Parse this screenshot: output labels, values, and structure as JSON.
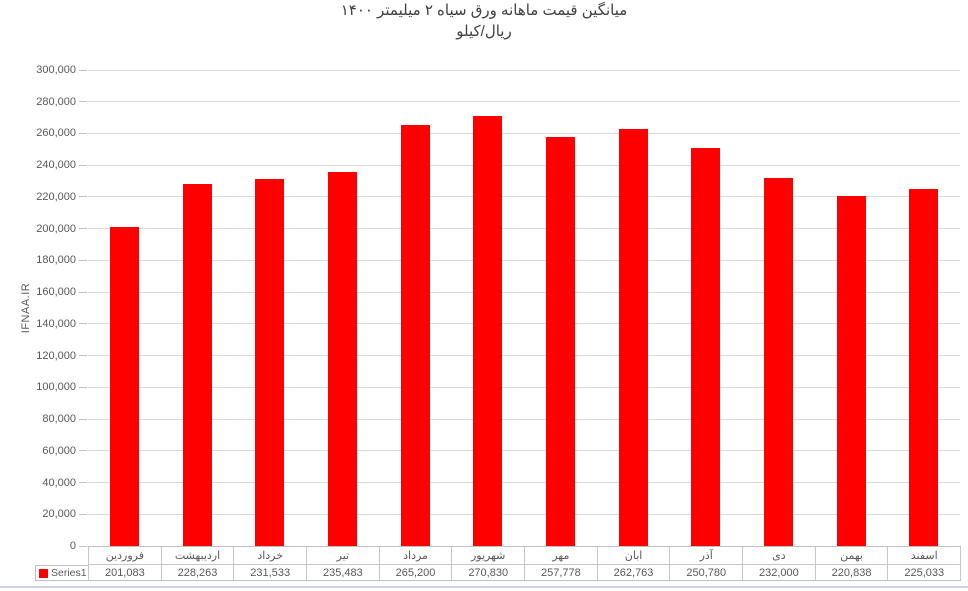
{
  "title": {
    "line1": "میانگین قیمت ماهانه ورق سیاه ۲ میلیمتر ۱۴۰۰",
    "line2": "ریال/کیلو"
  },
  "y_axis": {
    "title": "IFNAA.IR",
    "tick_labels": [
      "0",
      "20,000",
      "40,000",
      "60,000",
      "80,000",
      "100,000",
      "120,000",
      "140,000",
      "160,000",
      "180,000",
      "200,000",
      "220,000",
      "240,000",
      "260,000",
      "280,000",
      "300,000"
    ]
  },
  "legend": {
    "label": "Series1",
    "marker_color": "#ff0000"
  },
  "colors": {
    "bar": "#ff0000",
    "gridline": "#d9d9d9",
    "axis_border": "#bfbfbf",
    "label_text": "#595959",
    "title_text": "#404040",
    "chart_bottom_edge": "#ccd4e2"
  },
  "chart_data": {
    "type": "bar",
    "title": "میانگین قیمت ماهانه ورق سیاه ۲ میلیمتر ۱۴۰۰",
    "subtitle": "ریال/کیلو",
    "categories": [
      "فروردین",
      "اردیبهشت",
      "خرداد",
      "تیر",
      "مرداد",
      "شهریور",
      "مهر",
      "ابان",
      "آذر",
      "دی",
      "بهمن",
      "اسفند"
    ],
    "series": [
      {
        "name": "Series1",
        "color": "#ff0000",
        "values": [
          201083,
          228263,
          231533,
          235483,
          265200,
          270830,
          257778,
          262763,
          250780,
          232000,
          220838,
          225033
        ],
        "value_labels": [
          "201,083",
          "228,263",
          "231,533",
          "235,483",
          "265,200",
          "270,830",
          "257,778",
          "262,763",
          "250,780",
          "232,000",
          "220,838",
          "225,033"
        ]
      }
    ],
    "xlabel": "",
    "ylabel": "IFNAA.IR",
    "ylim": [
      0,
      300000
    ],
    "ytick_step": 20000,
    "grid": true,
    "legend_position": "bottom-left-data-table",
    "data_table_shown": true
  }
}
